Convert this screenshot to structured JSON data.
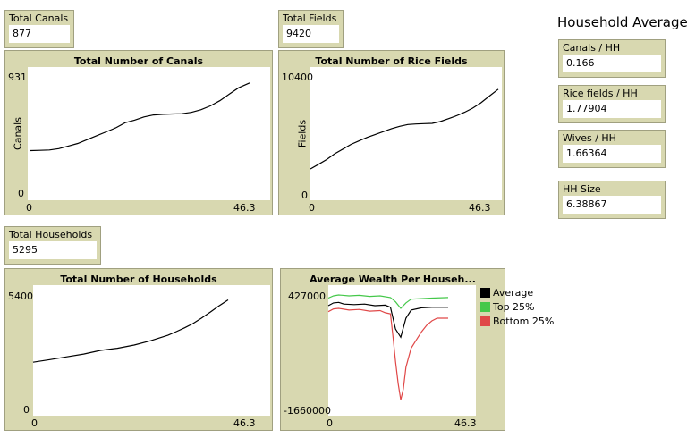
{
  "monitors": {
    "total_canals": {
      "label": "Total Canals",
      "value": "877"
    },
    "total_fields": {
      "label": "Total Fields",
      "value": "9420"
    },
    "total_households": {
      "label": "Total Households",
      "value": "5295"
    },
    "canals_hh": {
      "label": "Canals / HH",
      "value": "0.166"
    },
    "rice_hh": {
      "label": "Rice fields / HH",
      "value": "1.77904"
    },
    "wives_hh": {
      "label": "Wives / HH",
      "value": "1.66364"
    },
    "hh_size": {
      "label": "HH Size",
      "value": "6.38867"
    }
  },
  "household_averages_title": "Household Averages",
  "chart_data": [
    {
      "type": "line",
      "title": "Total Number of Canals",
      "ylabel": "Canals",
      "xlabel": "",
      "xlim": [
        0,
        46.3
      ],
      "ylim": [
        0,
        931
      ],
      "x_tick_labels": [
        "0",
        "46.3"
      ],
      "y_tick_labels": [
        "931",
        "0"
      ],
      "series": [
        {
          "color": "#000000",
          "points": [
            [
              0,
              355
            ],
            [
              2,
              357
            ],
            [
              4,
              360
            ],
            [
              6,
              370
            ],
            [
              8,
              390
            ],
            [
              10,
              410
            ],
            [
              12,
              440
            ],
            [
              14,
              470
            ],
            [
              16,
              500
            ],
            [
              18,
              530
            ],
            [
              20,
              570
            ],
            [
              22,
              590
            ],
            [
              24,
              615
            ],
            [
              26,
              630
            ],
            [
              28,
              635
            ],
            [
              30,
              638
            ],
            [
              32,
              640
            ],
            [
              34,
              650
            ],
            [
              36,
              670
            ],
            [
              38,
              700
            ],
            [
              40,
              740
            ],
            [
              42,
              790
            ],
            [
              44,
              840
            ],
            [
              46.3,
              877
            ]
          ]
        }
      ]
    },
    {
      "type": "line",
      "title": "Total Number of Rice Fields",
      "ylabel": "Fields",
      "xlabel": "",
      "xlim": [
        0,
        46.3
      ],
      "ylim": [
        0,
        10400
      ],
      "x_tick_labels": [
        "0",
        "46.3"
      ],
      "y_tick_labels": [
        "10400",
        "0"
      ],
      "series": [
        {
          "color": "#000000",
          "points": [
            [
              0,
              2600
            ],
            [
              2,
              3000
            ],
            [
              4,
              3400
            ],
            [
              6,
              3900
            ],
            [
              8,
              4300
            ],
            [
              10,
              4700
            ],
            [
              12,
              5000
            ],
            [
              14,
              5300
            ],
            [
              16,
              5550
            ],
            [
              18,
              5800
            ],
            [
              20,
              6050
            ],
            [
              22,
              6250
            ],
            [
              24,
              6400
            ],
            [
              26,
              6450
            ],
            [
              28,
              6480
            ],
            [
              30,
              6500
            ],
            [
              32,
              6650
            ],
            [
              34,
              6900
            ],
            [
              36,
              7150
            ],
            [
              38,
              7450
            ],
            [
              40,
              7800
            ],
            [
              42,
              8250
            ],
            [
              44,
              8800
            ],
            [
              46.3,
              9420
            ]
          ]
        }
      ]
    },
    {
      "type": "line",
      "title": "Total Number of Households",
      "ylabel": "",
      "xlabel": "",
      "xlim": [
        0,
        46.3
      ],
      "ylim": [
        0,
        5400
      ],
      "x_tick_labels": [
        "0",
        "46.3"
      ],
      "y_tick_labels": [
        "5400",
        "0"
      ],
      "series": [
        {
          "color": "#000000",
          "points": [
            [
              0,
              2400
            ],
            [
              4,
              2520
            ],
            [
              8,
              2650
            ],
            [
              12,
              2780
            ],
            [
              16,
              2950
            ],
            [
              20,
              3050
            ],
            [
              24,
              3200
            ],
            [
              28,
              3400
            ],
            [
              32,
              3650
            ],
            [
              34,
              3820
            ],
            [
              36,
              4000
            ],
            [
              38,
              4200
            ],
            [
              40,
              4450
            ],
            [
              42,
              4720
            ],
            [
              44,
              5000
            ],
            [
              46.3,
              5295
            ]
          ]
        }
      ]
    },
    {
      "type": "line",
      "title": "Average Wealth Per Househ...",
      "ylabel": "",
      "xlabel": "",
      "xlim": [
        0,
        46.3
      ],
      "ylim": [
        -1660000,
        427000
      ],
      "x_tick_labels": [
        "0",
        "46.3"
      ],
      "y_tick_labels": [
        "427000",
        "-1660000"
      ],
      "series": [
        {
          "name": "Average",
          "color": "#000000",
          "points": [
            [
              0,
              230000
            ],
            [
              2,
              280000
            ],
            [
              4,
              290000
            ],
            [
              6,
              260000
            ],
            [
              10,
              250000
            ],
            [
              14,
              260000
            ],
            [
              18,
              230000
            ],
            [
              22,
              240000
            ],
            [
              24,
              200000
            ],
            [
              26,
              -200000
            ],
            [
              28,
              -350000
            ],
            [
              30,
              0
            ],
            [
              32,
              150000
            ],
            [
              36,
              190000
            ],
            [
              40,
              200000
            ],
            [
              46.3,
              200000
            ]
          ]
        },
        {
          "name": "Top 25%",
          "color": "#45c84a",
          "points": [
            [
              0,
              370000
            ],
            [
              2,
              410000
            ],
            [
              4,
              427000
            ],
            [
              8,
              410000
            ],
            [
              12,
              420000
            ],
            [
              16,
              400000
            ],
            [
              20,
              410000
            ],
            [
              24,
              380000
            ],
            [
              26,
              300000
            ],
            [
              28,
              180000
            ],
            [
              30,
              280000
            ],
            [
              32,
              350000
            ],
            [
              36,
              360000
            ],
            [
              40,
              370000
            ],
            [
              46.3,
              380000
            ]
          ]
        },
        {
          "name": "Bottom 25%",
          "color": "#e04848",
          "points": [
            [
              0,
              120000
            ],
            [
              2,
              170000
            ],
            [
              4,
              180000
            ],
            [
              8,
              150000
            ],
            [
              12,
              160000
            ],
            [
              16,
              130000
            ],
            [
              20,
              140000
            ],
            [
              22,
              100000
            ],
            [
              24,
              80000
            ],
            [
              25,
              -350000
            ],
            [
              26,
              -800000
            ],
            [
              27,
              -1200000
            ],
            [
              28,
              -1500000
            ],
            [
              29,
              -1300000
            ],
            [
              30,
              -900000
            ],
            [
              32,
              -550000
            ],
            [
              34,
              -400000
            ],
            [
              36,
              -250000
            ],
            [
              38,
              -130000
            ],
            [
              40,
              -50000
            ],
            [
              42,
              0
            ],
            [
              46.3,
              0
            ]
          ]
        }
      ]
    }
  ]
}
